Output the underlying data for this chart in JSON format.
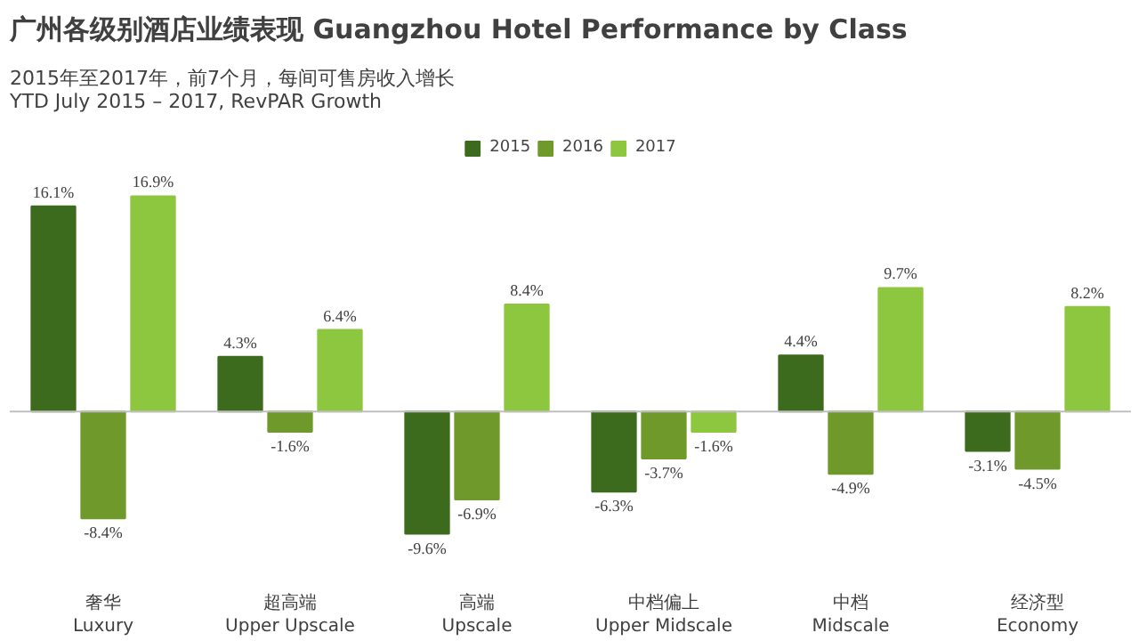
{
  "chart_data": {
    "type": "bar",
    "title": "广州各级别酒店业绩表现 Guangzhou Hotel Performance by Class",
    "subtitle": "2015年至2017年，前7个月，每间可售房收入增长\nYTD July 2015 – 2017, RevPAR Growth",
    "categories": [
      "奢华\nLuxury",
      "超高端\nUpper Upscale",
      "高端\nUpscale",
      "中档偏上\nUpper Midscale",
      "中档\nMidscale",
      "经济型\nEconomy"
    ],
    "series": [
      {
        "name": "2015",
        "color": "#3d6b1e",
        "values": [
          16.1,
          4.3,
          -9.6,
          -6.3,
          4.4,
          -3.1
        ],
        "value_labels": [
          "16.1%",
          "4.3%",
          "-9.6%",
          "-6.3%",
          "4.4%",
          "-3.1%"
        ]
      },
      {
        "name": "2016",
        "color": "#6f9a2b",
        "values": [
          -8.4,
          -1.6,
          -6.9,
          -3.7,
          -4.9,
          -4.5
        ],
        "value_labels": [
          "-8.4%",
          "-1.6%",
          "-6.9%",
          "-3.7%",
          "-4.9%",
          "-4.5%"
        ]
      },
      {
        "name": "2017",
        "color": "#8dc63f",
        "values": [
          16.9,
          6.4,
          8.4,
          -1.6,
          9.7,
          8.2
        ],
        "value_labels": [
          "16.9%",
          "6.4%",
          "8.4%",
          "-1.6%",
          "9.7%",
          "8.2%"
        ]
      }
    ],
    "legend": "top",
    "grid": false
  }
}
